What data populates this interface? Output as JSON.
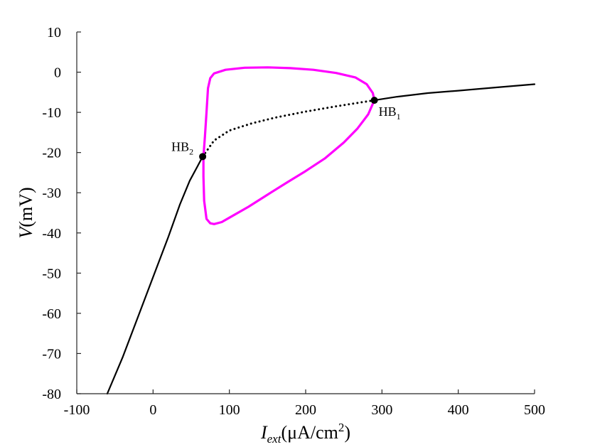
{
  "chart_data": {
    "type": "line",
    "title": "",
    "xlabel": "I_ext(μA/cm²)",
    "ylabel": "V(mV)",
    "xlim": [
      -100,
      500
    ],
    "ylim": [
      -80,
      10
    ],
    "grid": false,
    "x_ticks": [
      -100,
      0,
      100,
      200,
      300,
      400,
      500
    ],
    "y_ticks": [
      10,
      0,
      -10,
      -20,
      -30,
      -40,
      -50,
      -60,
      -70,
      -80
    ],
    "x_tick_labels": [
      "-100",
      "0",
      "100",
      "200",
      "300",
      "400",
      "500"
    ],
    "y_tick_labels": [
      "10",
      "0",
      "-10",
      "-20",
      "-30",
      "-40",
      "-50",
      "-60",
      "-70",
      "-80"
    ],
    "xlabel_parts": {
      "main": "I",
      "sub": "ext",
      "rest": "(μA/cm",
      "sup": "2",
      "close": ")"
    },
    "ylabel_parts": {
      "var": "V",
      "unit": "(mV)"
    },
    "series": [
      {
        "name": "stable equilibrium (low)",
        "style": "solid",
        "color": "#000000",
        "points": [
          [
            -60,
            -80
          ],
          [
            -40,
            -71
          ],
          [
            -20,
            -61
          ],
          [
            0,
            -51
          ],
          [
            20,
            -41
          ],
          [
            35,
            -33
          ],
          [
            48,
            -27
          ],
          [
            58,
            -23.5
          ],
          [
            65,
            -21
          ]
        ]
      },
      {
        "name": "unstable equilibrium",
        "style": "dotted",
        "color": "#000000",
        "points": [
          [
            65,
            -21
          ],
          [
            80,
            -17
          ],
          [
            100,
            -14.5
          ],
          [
            130,
            -12.7
          ],
          [
            160,
            -11.3
          ],
          [
            200,
            -9.8
          ],
          [
            240,
            -8.5
          ],
          [
            270,
            -7.6
          ],
          [
            290,
            -7
          ]
        ]
      },
      {
        "name": "stable equilibrium (high)",
        "style": "solid",
        "color": "#000000",
        "points": [
          [
            290,
            -7
          ],
          [
            320,
            -6.1
          ],
          [
            360,
            -5.2
          ],
          [
            400,
            -4.6
          ],
          [
            450,
            -3.8
          ],
          [
            500,
            -3
          ]
        ]
      },
      {
        "name": "limit cycle amplitude",
        "style": "solid",
        "color": "#ff00ff",
        "closed": true,
        "points": [
          [
            66,
            -21
          ],
          [
            68,
            -16
          ],
          [
            70,
            -10
          ],
          [
            72,
            -4
          ],
          [
            75,
            -1.5
          ],
          [
            80,
            -0.3
          ],
          [
            95,
            0.6
          ],
          [
            120,
            1.1
          ],
          [
            150,
            1.2
          ],
          [
            180,
            1.0
          ],
          [
            210,
            0.6
          ],
          [
            240,
            -0.2
          ],
          [
            265,
            -1.3
          ],
          [
            280,
            -3
          ],
          [
            288,
            -5.2
          ],
          [
            290,
            -7
          ],
          [
            282,
            -10.5
          ],
          [
            268,
            -14
          ],
          [
            250,
            -17.5
          ],
          [
            225,
            -21.5
          ],
          [
            200,
            -24.6
          ],
          [
            175,
            -27.5
          ],
          [
            150,
            -30.5
          ],
          [
            125,
            -33.5
          ],
          [
            100,
            -36.2
          ],
          [
            90,
            -37.3
          ],
          [
            80,
            -37.8
          ],
          [
            75,
            -37.6
          ],
          [
            70,
            -36.5
          ],
          [
            67,
            -32
          ],
          [
            66,
            -26
          ],
          [
            66,
            -21
          ]
        ]
      }
    ],
    "annotations": [
      {
        "name": "hb2",
        "label": "HB",
        "subscript": "2",
        "x": 65,
        "y": -21
      },
      {
        "name": "hb1",
        "label": "HB",
        "subscript": "1",
        "x": 290,
        "y": -7
      }
    ]
  }
}
